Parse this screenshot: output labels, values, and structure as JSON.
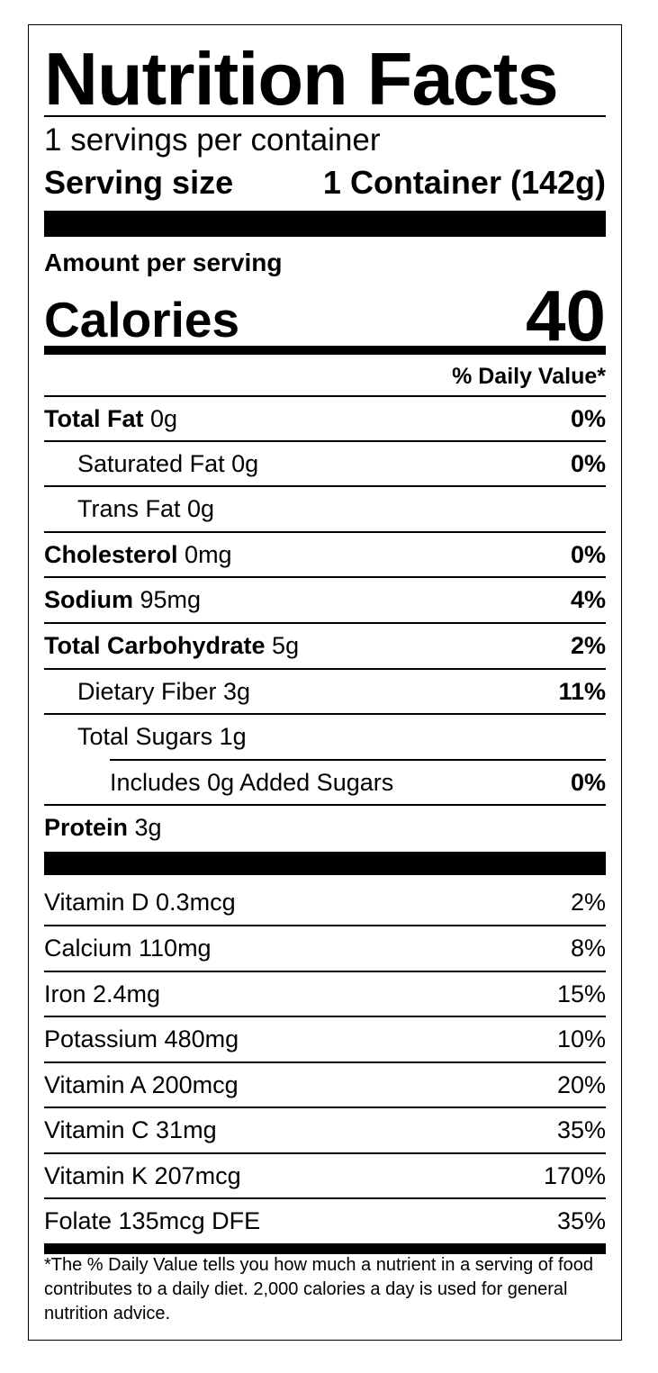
{
  "title": "Nutrition Facts",
  "servings_per_container": "1 servings per container",
  "serving_size": {
    "label": "Serving size",
    "value": "1 Container (142g)"
  },
  "amount_per_serving": "Amount per serving",
  "calories": {
    "label": "Calories",
    "value": "40"
  },
  "daily_value_header": "% Daily Value*",
  "nutrients": [
    {
      "name": "Total Fat",
      "amount": "0g",
      "dv": "0%"
    },
    {
      "name": "Saturated Fat 0g",
      "amount": "",
      "dv": "0%"
    },
    {
      "name": "Trans Fat 0g",
      "amount": "",
      "dv": ""
    },
    {
      "name": "Cholesterol",
      "amount": "0mg",
      "dv": "0%"
    },
    {
      "name": "Sodium",
      "amount": "95mg",
      "dv": "4%"
    },
    {
      "name": "Total Carbohydrate",
      "amount": "5g",
      "dv": "2%"
    },
    {
      "name": "Dietary Fiber 3g",
      "amount": "",
      "dv": "11%"
    },
    {
      "name": "Total Sugars 1g",
      "amount": "",
      "dv": ""
    },
    {
      "name": "Includes 0g Added Sugars",
      "amount": "",
      "dv": "0%"
    },
    {
      "name": "Protein",
      "amount": "3g",
      "dv": ""
    }
  ],
  "vitamins": [
    {
      "name": "Vitamin D 0.3mcg",
      "dv": "2%"
    },
    {
      "name": "Calcium 110mg",
      "dv": "8%"
    },
    {
      "name": "Iron 2.4mg",
      "dv": "15%"
    },
    {
      "name": "Potassium 480mg",
      "dv": "10%"
    },
    {
      "name": "Vitamin A 200mcg",
      "dv": "20%"
    },
    {
      "name": "Vitamin C 31mg",
      "dv": "35%"
    },
    {
      "name": "Vitamin K 207mcg",
      "dv": "170%"
    },
    {
      "name": "Folate 135mcg DFE",
      "dv": "35%"
    }
  ],
  "footnote": "*The % Daily Value tells you how much a nutrient in a serving of food contributes to a daily diet. 2,000 calories a day is used for general nutrition advice."
}
